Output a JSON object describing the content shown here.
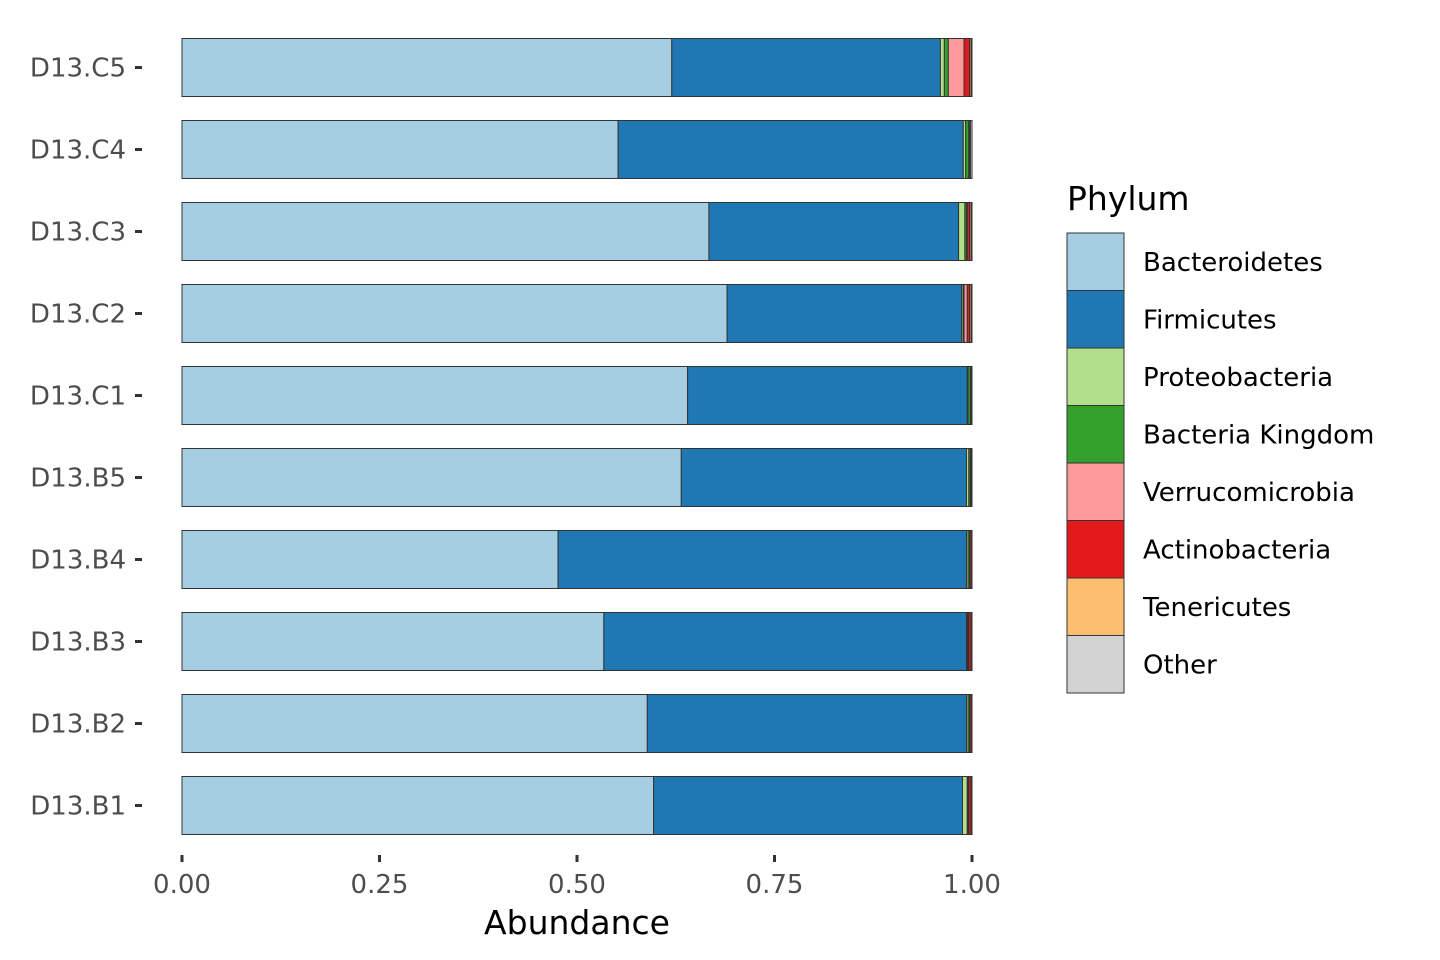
{
  "chart_data": {
    "type": "bar",
    "orientation": "horizontal",
    "stacked": true,
    "xlabel": "Abundance",
    "ylabel": "",
    "xlim": [
      0,
      1
    ],
    "x_ticks": [
      "0.00",
      "0.25",
      "0.50",
      "0.75",
      "1.00"
    ],
    "x_tick_values": [
      0,
      0.25,
      0.5,
      0.75,
      1.0
    ],
    "grid": false,
    "legend_position": "right",
    "legend_title": "Phylum",
    "categories": [
      "D13.C5",
      "D13.C4",
      "D13.C3",
      "D13.C2",
      "D13.C1",
      "D13.B5",
      "D13.B4",
      "D13.B3",
      "D13.B2",
      "D13.B1"
    ],
    "series": [
      {
        "name": "Bacteroidetes",
        "color": "#a6cee3",
        "values": [
          0.62,
          0.552,
          0.667,
          0.69,
          0.64,
          0.632,
          0.476,
          0.534,
          0.589,
          0.597
        ]
      },
      {
        "name": "Firmicutes",
        "color": "#1f78b4",
        "values": [
          0.34,
          0.437,
          0.316,
          0.297,
          0.354,
          0.361,
          0.517,
          0.459,
          0.404,
          0.391
        ]
      },
      {
        "name": "Proteobacteria",
        "color": "#b2df8a",
        "values": [
          0.005,
          0.003,
          0.008,
          0.002,
          0.001,
          0.003,
          0.002,
          0.001,
          0.002,
          0.006
        ]
      },
      {
        "name": "Bacteria Kingdom",
        "color": "#33a02c",
        "values": [
          0.005,
          0.004,
          0.002,
          0.001,
          0.003,
          0.002,
          0.002,
          0.001,
          0.002,
          0.001
        ]
      },
      {
        "name": "Verrucomicrobia",
        "color": "#fb9a99",
        "values": [
          0.02,
          0.0,
          0.001,
          0.004,
          0.0,
          0.0,
          0.0,
          0.001,
          0.0,
          0.001
        ]
      },
      {
        "name": "Actinobacteria",
        "color": "#e31a1c",
        "values": [
          0.007,
          0.001,
          0.003,
          0.003,
          0.001,
          0.001,
          0.002,
          0.003,
          0.002,
          0.003
        ]
      },
      {
        "name": "Tenericutes",
        "color": "#fdbf6f",
        "values": [
          0.002,
          0.001,
          0.002,
          0.002,
          0.0,
          0.0,
          0.0,
          0.0,
          0.0,
          0.0
        ]
      },
      {
        "name": "Other",
        "color": "#d3d3d3",
        "values": [
          0.001,
          0.002,
          0.001,
          0.001,
          0.001,
          0.001,
          0.001,
          0.001,
          0.001,
          0.001
        ]
      }
    ]
  }
}
